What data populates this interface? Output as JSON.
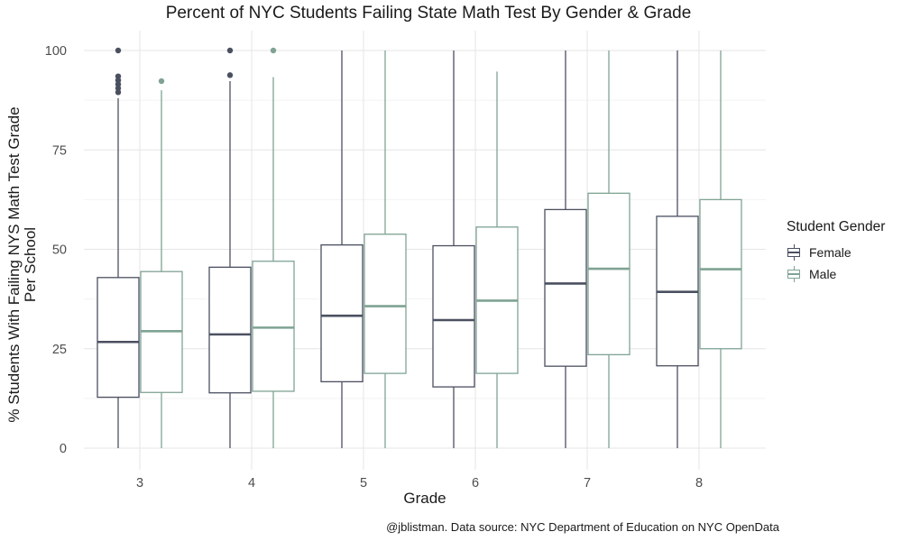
{
  "chart_data": {
    "type": "boxplot",
    "title": "Percent of NYC Students Failing State Math Test By Gender & Grade",
    "xlabel": "Grade",
    "ylabel": "% Students With Failing NYS Math Test Grade\nPer School",
    "ylim": [
      0,
      100
    ],
    "yticks": [
      0,
      25,
      50,
      75,
      100
    ],
    "grid": true,
    "legend_position": "right",
    "legend_title": "Student Gender",
    "categories": [
      "3",
      "4",
      "5",
      "6",
      "7",
      "8"
    ],
    "series": [
      {
        "name": "Female",
        "color": "#4b5060",
        "boxes": [
          {
            "min": 0,
            "q1": 12.8,
            "median": 26.7,
            "q3": 42.9,
            "max": 88,
            "outliers": [
              89.5,
              90.5,
              91.5,
              92.5,
              93.5,
              100
            ]
          },
          {
            "min": 0,
            "q1": 13.9,
            "median": 28.6,
            "q3": 45.5,
            "max": 92.3,
            "outliers": [
              93.8,
              100
            ]
          },
          {
            "min": 0,
            "q1": 16.7,
            "median": 33.3,
            "q3": 51.1,
            "max": 100,
            "outliers": []
          },
          {
            "min": 0,
            "q1": 15.4,
            "median": 32.2,
            "q3": 50.9,
            "max": 100,
            "outliers": []
          },
          {
            "min": 0,
            "q1": 20.6,
            "median": 41.4,
            "q3": 60.0,
            "max": 100,
            "outliers": []
          },
          {
            "min": 0,
            "q1": 20.7,
            "median": 39.3,
            "q3": 58.3,
            "max": 100,
            "outliers": []
          }
        ]
      },
      {
        "name": "Male",
        "color": "#7fa393",
        "boxes": [
          {
            "min": 0,
            "q1": 14.0,
            "median": 29.4,
            "q3": 44.4,
            "max": 90,
            "outliers": [
              92.3
            ]
          },
          {
            "min": 0,
            "q1": 14.3,
            "median": 30.3,
            "q3": 47.0,
            "max": 93.3,
            "outliers": [
              100
            ]
          },
          {
            "min": 0,
            "q1": 18.8,
            "median": 35.7,
            "q3": 53.8,
            "max": 100,
            "outliers": []
          },
          {
            "min": 0,
            "q1": 18.8,
            "median": 37.1,
            "q3": 55.6,
            "max": 94.7,
            "outliers": []
          },
          {
            "min": 0,
            "q1": 23.5,
            "median": 45.1,
            "q3": 64.1,
            "max": 100,
            "outliers": []
          },
          {
            "min": 0,
            "q1": 25.0,
            "median": 45.0,
            "q3": 62.5,
            "max": 100,
            "outliers": []
          }
        ]
      }
    ]
  },
  "caption": "@jblistman. Data source: NYC Department of Education on NYC OpenData"
}
